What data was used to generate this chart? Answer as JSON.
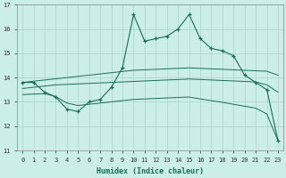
{
  "xlabel": "Humidex (Indice chaleur)",
  "bg_color": "#cceee8",
  "grid_color": "#b0d8d0",
  "line_color": "#1a6b5a",
  "xlim": [
    -0.5,
    23.5
  ],
  "ylim": [
    11,
    17
  ],
  "yticks": [
    11,
    12,
    13,
    14,
    15,
    16,
    17
  ],
  "xticks": [
    0,
    1,
    2,
    3,
    4,
    5,
    6,
    7,
    8,
    9,
    10,
    11,
    12,
    13,
    14,
    15,
    16,
    17,
    18,
    19,
    20,
    21,
    22,
    23
  ],
  "series_main": [
    13.8,
    13.8,
    13.4,
    13.2,
    12.7,
    12.6,
    13.0,
    13.1,
    13.6,
    14.4,
    16.6,
    15.5,
    15.6,
    15.7,
    16.0,
    16.6,
    15.6,
    15.2,
    15.1,
    14.9,
    14.1,
    13.8,
    13.5,
    11.4
  ],
  "series_reg1": [
    13.8,
    13.85,
    13.9,
    13.95,
    14.0,
    14.05,
    14.1,
    14.15,
    14.2,
    14.25,
    14.3,
    14.32,
    14.34,
    14.36,
    14.38,
    14.4,
    14.38,
    14.36,
    14.34,
    14.32,
    14.3,
    14.28,
    14.26,
    14.1
  ],
  "series_reg2": [
    13.55,
    13.6,
    13.65,
    13.7,
    13.72,
    13.74,
    13.76,
    13.78,
    13.8,
    13.82,
    13.84,
    13.86,
    13.88,
    13.9,
    13.92,
    13.94,
    13.92,
    13.9,
    13.88,
    13.86,
    13.84,
    13.82,
    13.7,
    13.4
  ],
  "series_reg3": [
    13.3,
    13.32,
    13.34,
    13.22,
    12.95,
    12.85,
    12.9,
    12.95,
    13.0,
    13.05,
    13.1,
    13.12,
    13.14,
    13.16,
    13.18,
    13.2,
    13.12,
    13.05,
    12.98,
    12.9,
    12.82,
    12.74,
    12.5,
    11.4
  ]
}
